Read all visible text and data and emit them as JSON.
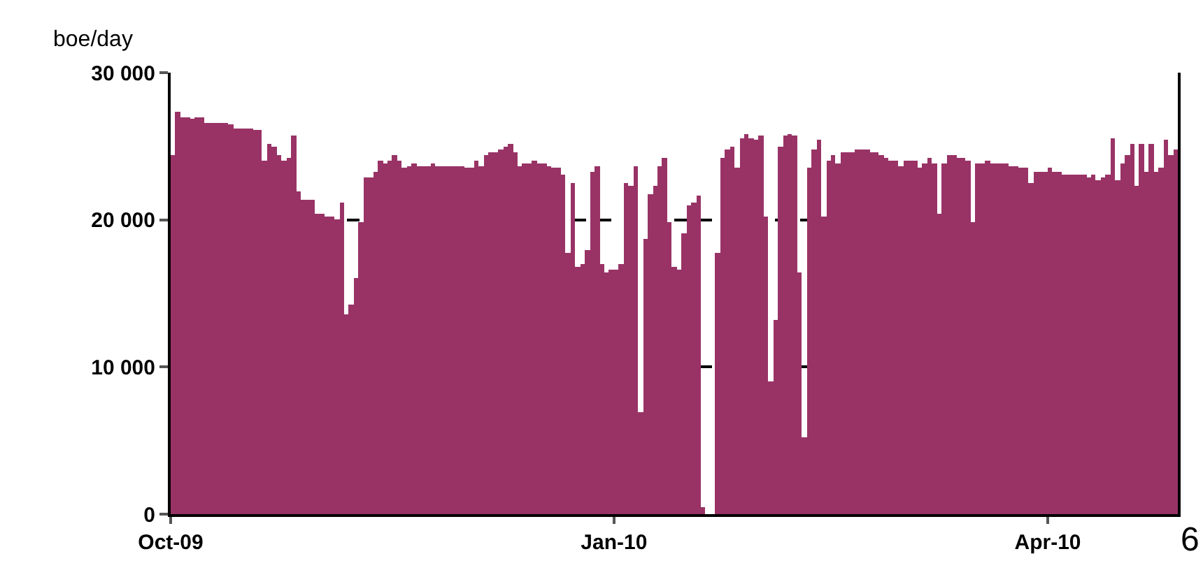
{
  "chart_data": {
    "type": "bar",
    "ylabel": "boe/day",
    "color": "#993366",
    "x": [
      "2009-10-01",
      "2009-10-02",
      "2009-10-03",
      "2009-10-04",
      "2009-10-05",
      "2009-10-06",
      "2009-10-07",
      "2009-10-08",
      "2009-10-09",
      "2009-10-10",
      "2009-10-11",
      "2009-10-12",
      "2009-10-13",
      "2009-10-14",
      "2009-10-15",
      "2009-10-16",
      "2009-10-17",
      "2009-10-18",
      "2009-10-19",
      "2009-10-20",
      "2009-10-21",
      "2009-10-22",
      "2009-10-23",
      "2009-10-24",
      "2009-10-25",
      "2009-10-26",
      "2009-10-27",
      "2009-10-28",
      "2009-10-29",
      "2009-10-30",
      "2009-10-31",
      "2009-11-01",
      "2009-11-02",
      "2009-11-03",
      "2009-11-04",
      "2009-11-05",
      "2009-11-06",
      "2009-11-07",
      "2009-11-08",
      "2009-11-09",
      "2009-11-10",
      "2009-11-11",
      "2009-11-12",
      "2009-11-13",
      "2009-11-14",
      "2009-11-15",
      "2009-11-16",
      "2009-11-17",
      "2009-11-18",
      "2009-11-19",
      "2009-11-20",
      "2009-11-21",
      "2009-11-22",
      "2009-11-23",
      "2009-11-24",
      "2009-11-25",
      "2009-11-26",
      "2009-11-27",
      "2009-11-28",
      "2009-11-29",
      "2009-11-30",
      "2009-12-01",
      "2009-12-02",
      "2009-12-03",
      "2009-12-04",
      "2009-12-05",
      "2009-12-06",
      "2009-12-07",
      "2009-12-08",
      "2009-12-09",
      "2009-12-10",
      "2009-12-11",
      "2009-12-12",
      "2009-12-13",
      "2009-12-14",
      "2009-12-15",
      "2009-12-16",
      "2009-12-17",
      "2009-12-18",
      "2009-12-19",
      "2009-12-20",
      "2009-12-21",
      "2009-12-22",
      "2009-12-23",
      "2009-12-24",
      "2009-12-25",
      "2009-12-26",
      "2009-12-27",
      "2009-12-28",
      "2009-12-29",
      "2009-12-30",
      "2009-12-31",
      "2010-01-01",
      "2010-01-02",
      "2010-01-03",
      "2010-01-04",
      "2010-01-05",
      "2010-01-06",
      "2010-01-07",
      "2010-01-08",
      "2010-01-09",
      "2010-01-10",
      "2010-01-11",
      "2010-01-12",
      "2010-01-13",
      "2010-01-14",
      "2010-01-15",
      "2010-01-16",
      "2010-01-17",
      "2010-01-18",
      "2010-01-19",
      "2010-01-20",
      "2010-01-21",
      "2010-01-22",
      "2010-01-23",
      "2010-01-24",
      "2010-01-25",
      "2010-01-26",
      "2010-01-27",
      "2010-01-28",
      "2010-01-29",
      "2010-01-30",
      "2010-01-31",
      "2010-02-01",
      "2010-02-02",
      "2010-02-03",
      "2010-02-04",
      "2010-02-05",
      "2010-02-06",
      "2010-02-07",
      "2010-02-08",
      "2010-02-09",
      "2010-02-10",
      "2010-02-11",
      "2010-02-12",
      "2010-02-13",
      "2010-02-14",
      "2010-02-15",
      "2010-02-16",
      "2010-02-17",
      "2010-02-18",
      "2010-02-19",
      "2010-02-20",
      "2010-02-21",
      "2010-02-22",
      "2010-02-23",
      "2010-02-24",
      "2010-02-25",
      "2010-02-26",
      "2010-02-27",
      "2010-02-28",
      "2010-03-01",
      "2010-03-02",
      "2010-03-03",
      "2010-03-04",
      "2010-03-05",
      "2010-03-06",
      "2010-03-07",
      "2010-03-08",
      "2010-03-09",
      "2010-03-10",
      "2010-03-11",
      "2010-03-12",
      "2010-03-13",
      "2010-03-14",
      "2010-03-15",
      "2010-03-16",
      "2010-03-17",
      "2010-03-18",
      "2010-03-19",
      "2010-03-20",
      "2010-03-21",
      "2010-03-22",
      "2010-03-23",
      "2010-03-24",
      "2010-03-25",
      "2010-03-26",
      "2010-03-27",
      "2010-03-28",
      "2010-03-29",
      "2010-03-30",
      "2010-03-31",
      "2010-04-01",
      "2010-04-02",
      "2010-04-03",
      "2010-04-04",
      "2010-04-05",
      "2010-04-06",
      "2010-04-07",
      "2010-04-08",
      "2010-04-09",
      "2010-04-10",
      "2010-04-11",
      "2010-04-12",
      "2010-04-13",
      "2010-04-14",
      "2010-04-15",
      "2010-04-16",
      "2010-04-17",
      "2010-04-18",
      "2010-04-19",
      "2010-04-20",
      "2010-04-21",
      "2010-04-22",
      "2010-04-23",
      "2010-04-24",
      "2010-04-25",
      "2010-04-26",
      "2010-04-27"
    ],
    "values": [
      24400,
      27300,
      27000,
      27000,
      26900,
      27000,
      27000,
      26600,
      26600,
      26600,
      26600,
      26600,
      26500,
      26200,
      26200,
      26200,
      26200,
      26100,
      26100,
      24000,
      25200,
      25000,
      24400,
      24000,
      24200,
      25700,
      21900,
      21400,
      21400,
      21400,
      20400,
      20400,
      20200,
      20200,
      20000,
      21200,
      13600,
      14200,
      16000,
      19800,
      22900,
      22900,
      23300,
      24000,
      23800,
      24000,
      24400,
      24000,
      23500,
      23600,
      23800,
      23600,
      23600,
      23600,
      23800,
      23600,
      23600,
      23600,
      23600,
      23600,
      23600,
      23500,
      23500,
      24000,
      23600,
      24400,
      24600,
      24600,
      24800,
      25000,
      25200,
      24600,
      23600,
      23800,
      23800,
      24000,
      23800,
      23800,
      23600,
      23500,
      23500,
      23100,
      17800,
      22500,
      16800,
      17000,
      17900,
      23300,
      23600,
      17000,
      16400,
      16600,
      16600,
      17000,
      22500,
      22300,
      23600,
      6900,
      18700,
      21700,
      22300,
      23600,
      24200,
      19800,
      16800,
      16600,
      19100,
      21000,
      21200,
      21600,
      500,
      0,
      0,
      17800,
      24200,
      24800,
      25000,
      23500,
      25500,
      25800,
      25500,
      25400,
      25700,
      20200,
      9000,
      13200,
      25000,
      25700,
      25800,
      25700,
      16400,
      5200,
      23500,
      24800,
      25400,
      20200,
      24000,
      24400,
      23800,
      24600,
      24600,
      24600,
      24800,
      24800,
      24800,
      24600,
      24600,
      24400,
      24200,
      24000,
      24000,
      23600,
      24000,
      24000,
      24000,
      23500,
      23800,
      24200,
      23800,
      20400,
      23800,
      24400,
      24400,
      24200,
      24200,
      24000,
      19800,
      23800,
      23800,
      24000,
      23800,
      23800,
      23800,
      23800,
      23600,
      23600,
      23500,
      23500,
      22500,
      23300,
      23300,
      23300,
      23500,
      23300,
      23300,
      23100,
      23100,
      23100,
      23100,
      23100,
      22900,
      23100,
      22700,
      22900,
      23100,
      25500,
      22700,
      23800,
      24400,
      25200,
      22300,
      25200,
      23300,
      25200,
      23300,
      23500,
      25400,
      24400,
      24800
    ],
    "xlim": [
      "2009-10-01",
      "2010-04-28"
    ],
    "xticks": [
      {
        "value": "2009-10-01",
        "label": "Oct-09"
      },
      {
        "value": "2010-01-01",
        "label": "Jan-10"
      },
      {
        "value": "2010-04-01",
        "label": "Apr-10"
      }
    ],
    "ylim": [
      0,
      30000
    ],
    "yticks": [
      {
        "value": 0,
        "label": "0"
      },
      {
        "value": 10000,
        "label": "10 000"
      },
      {
        "value": 20000,
        "label": "20 000"
      },
      {
        "value": 30000,
        "label": "30 000"
      }
    ],
    "grid": "y",
    "annotations": [
      "6"
    ]
  }
}
